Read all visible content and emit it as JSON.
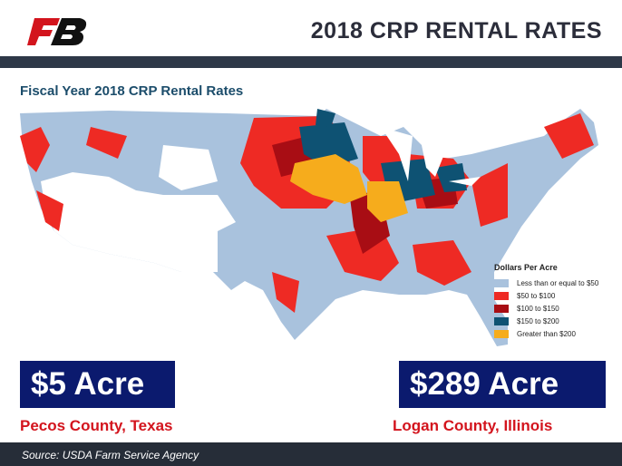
{
  "header": {
    "title": "2018 CRP RENTAL RATES"
  },
  "map": {
    "title": "Fiscal Year 2018 CRP Rental Rates",
    "legend": {
      "title": "Dollars Per Acre",
      "items": [
        {
          "label": "Less than or equal to $50",
          "color": "#a9c2dd"
        },
        {
          "label": "$50 to $100",
          "color": "#ee2a24"
        },
        {
          "label": "$100 to $150",
          "color": "#a80d14"
        },
        {
          "label": "$150 to $200",
          "color": "#0e5273"
        },
        {
          "label": "Greater than $200",
          "color": "#f6ac1c"
        }
      ]
    }
  },
  "callouts": [
    {
      "value": "$5 Acre",
      "place": "Pecos County, Texas"
    },
    {
      "value": "$289 Acre",
      "place": "Logan County, Illinois"
    }
  ],
  "footer": {
    "source": "Source: USDA Farm Service Agency"
  }
}
